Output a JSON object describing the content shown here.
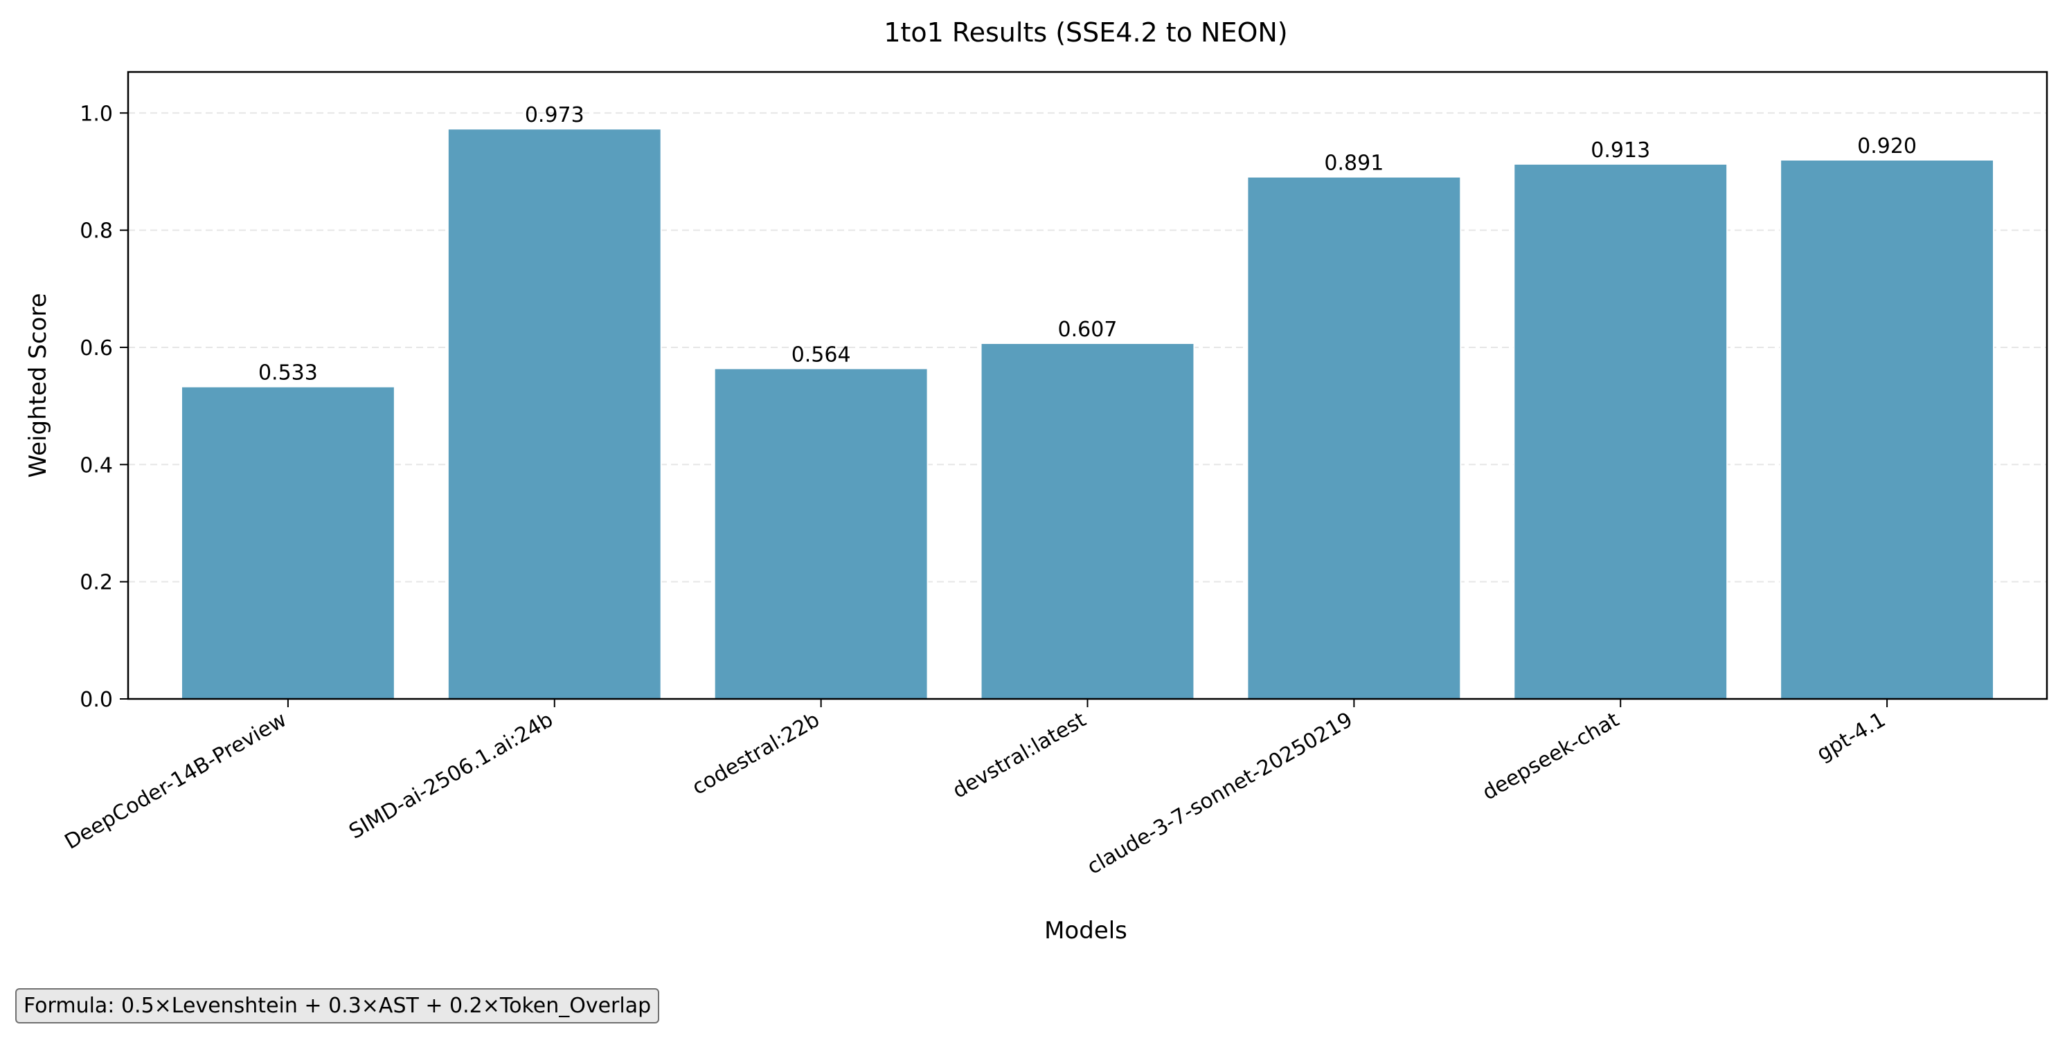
{
  "chart_data": {
    "type": "bar",
    "title": "1to1 Results (SSE4.2 to NEON)",
    "xlabel": "Models",
    "ylabel": "Weighted Score",
    "categories": [
      "DeepCoder-14B-Preview",
      "SIMD-ai-2506.1.ai:24b",
      "codestral:22b",
      "devstral:latest",
      "claude-3-7-sonnet-20250219",
      "deepseek-chat",
      "gpt-4.1"
    ],
    "values": [
      0.533,
      0.973,
      0.564,
      0.607,
      0.891,
      0.913,
      0.92
    ],
    "value_labels": [
      "0.533",
      "0.973",
      "0.564",
      "0.607",
      "0.891",
      "0.913",
      "0.920"
    ],
    "ylim": [
      0,
      1.07
    ],
    "yticks": [
      0.0,
      0.2,
      0.4,
      0.6,
      0.8,
      1.0
    ],
    "ytick_labels": [
      "0.0",
      "0.2",
      "0.4",
      "0.6",
      "0.8",
      "1.0"
    ],
    "grid": "y-dashed",
    "bar_color": "#5a9ebd"
  },
  "footnote": "Formula: 0.5×Levenshtein + 0.3×AST + 0.2×Token_Overlap"
}
